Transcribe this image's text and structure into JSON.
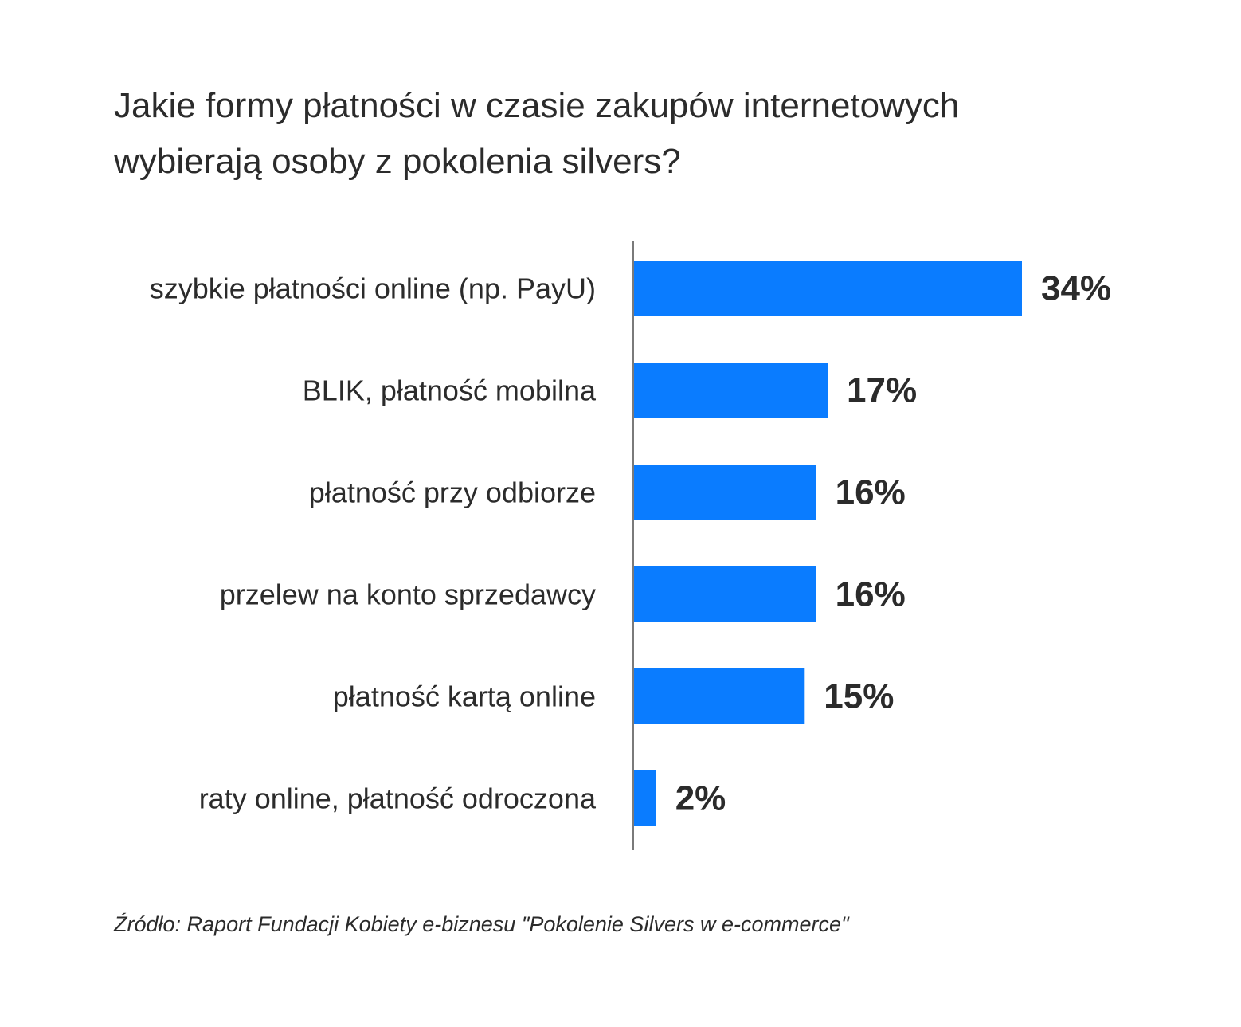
{
  "chart_data": {
    "type": "bar",
    "orientation": "horizontal",
    "title": [
      "Jakie formy płatności w czasie zakupów internetowych",
      "wybierają osoby z pokolenia silvers?"
    ],
    "categories": [
      "szybkie płatności online (np. PayU)",
      "BLIK, płatność mobilna",
      "płatność przy odbiorze",
      "przelew na konto sprzedawcy",
      "płatność kartą online",
      "raty online, płatność odroczona"
    ],
    "values": [
      34,
      17,
      16,
      16,
      15,
      2
    ],
    "value_labels": [
      "34%",
      "17%",
      "16%",
      "16%",
      "15%",
      "2%"
    ],
    "unit": "%",
    "bar_color": "#0a7cff",
    "axis_color": "#7a7a7a",
    "text_color": "#2b2b2b",
    "grid": false,
    "legend": "none"
  },
  "source": "Źródło: Raport Fundacji Kobiety e-biznesu \"Pokolenie Silvers w e-commerce\""
}
